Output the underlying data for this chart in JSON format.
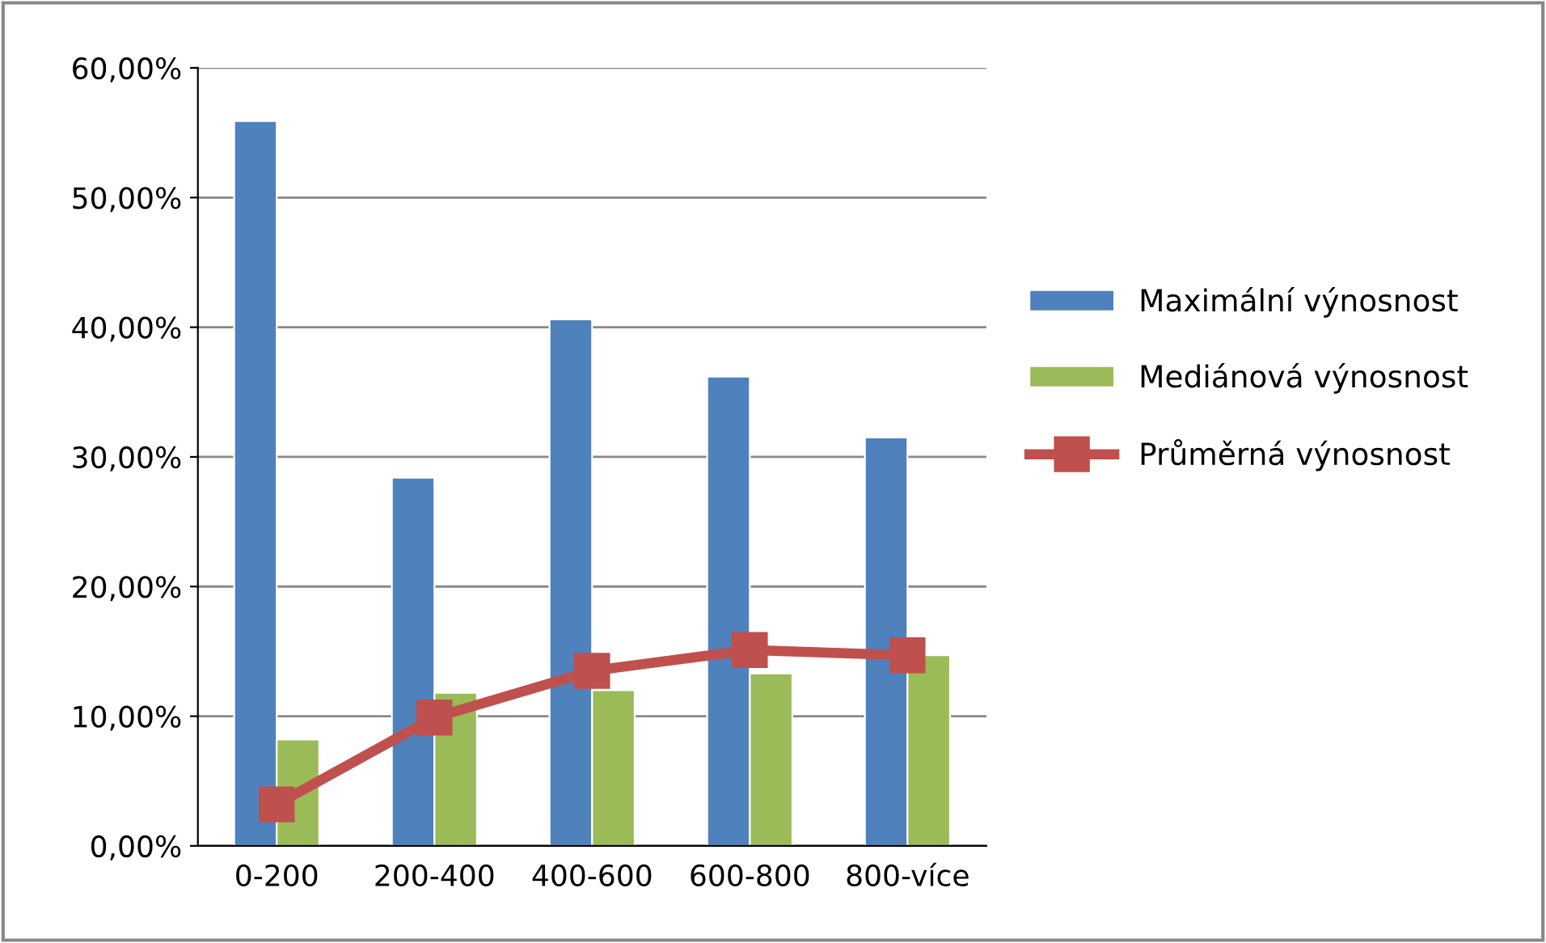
{
  "chart_data": {
    "type": "bar",
    "categories": [
      "0-200",
      "200-400",
      "400-600",
      "600-800",
      "800-více"
    ],
    "series": [
      {
        "name": "Maximální výnosnost",
        "color": "#4f81bd",
        "values": [
          55.9,
          28.4,
          40.6,
          36.2,
          31.5
        ]
      },
      {
        "name": "Mediánová výnosnost",
        "color": "#9bbb59",
        "values": [
          8.2,
          11.8,
          12.0,
          13.3,
          14.7
        ]
      },
      {
        "name": "Průměrná výnosnost",
        "type": "line",
        "color": "#c0504d",
        "values": [
          3.2,
          9.9,
          13.5,
          15.1,
          14.7
        ]
      }
    ],
    "ylim": [
      0,
      60
    ],
    "yticks": [
      {
        "value": 0,
        "label": "0,00%"
      },
      {
        "value": 10,
        "label": "10,00%"
      },
      {
        "value": 20,
        "label": "20,00%"
      },
      {
        "value": 30,
        "label": "30,00%"
      },
      {
        "value": 40,
        "label": "40,00%"
      },
      {
        "value": 50,
        "label": "50,00%"
      },
      {
        "value": 60,
        "label": "60,00%"
      }
    ],
    "grid": "y",
    "legend": "right",
    "marker": "square",
    "line_style": "solid"
  }
}
